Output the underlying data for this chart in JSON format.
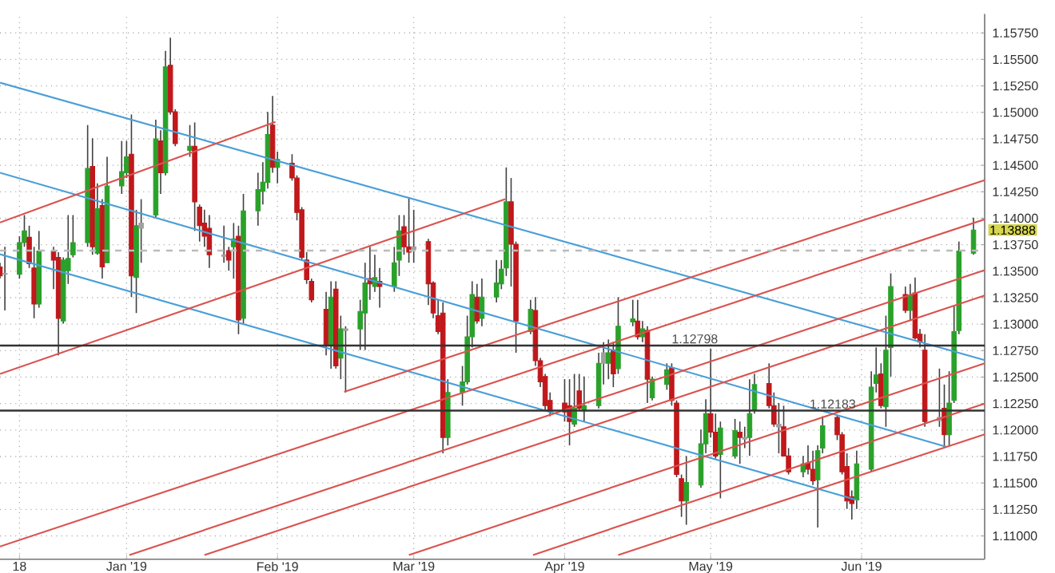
{
  "chart_data": {
    "type": "candlestick",
    "x": [
      "2018-12-06",
      "2018-12-07",
      "2018-12-10",
      "2018-12-11",
      "2018-12-12",
      "2018-12-13",
      "2018-12-14",
      "2018-12-17",
      "2018-12-18",
      "2018-12-19",
      "2018-12-20",
      "2018-12-21",
      "2018-12-24",
      "2018-12-25",
      "2018-12-26",
      "2018-12-27",
      "2018-12-28",
      "2018-12-31",
      "2019-01-01",
      "2019-01-02",
      "2019-01-03",
      "2019-01-04",
      "2019-01-07",
      "2019-01-08",
      "2019-01-09",
      "2019-01-10",
      "2019-01-11",
      "2019-01-14",
      "2019-01-15",
      "2019-01-16",
      "2019-01-17",
      "2019-01-18",
      "2019-01-21",
      "2019-01-22",
      "2019-01-23",
      "2019-01-24",
      "2019-01-25",
      "2019-01-28",
      "2019-01-29",
      "2019-01-30",
      "2019-01-31",
      "2019-02-01",
      "2019-02-04",
      "2019-02-05",
      "2019-02-06",
      "2019-02-07",
      "2019-02-08",
      "2019-02-11",
      "2019-02-12",
      "2019-02-13",
      "2019-02-14",
      "2019-02-15",
      "2019-02-18",
      "2019-02-19",
      "2019-02-20",
      "2019-02-21",
      "2019-02-22",
      "2019-02-25",
      "2019-02-26",
      "2019-02-27",
      "2019-02-28",
      "2019-03-01",
      "2019-03-04",
      "2019-03-05",
      "2019-03-06",
      "2019-03-07",
      "2019-03-08",
      "2019-03-11",
      "2019-03-12",
      "2019-03-13",
      "2019-03-14",
      "2019-03-15",
      "2019-03-18",
      "2019-03-19",
      "2019-03-20",
      "2019-03-21",
      "2019-03-22",
      "2019-03-25",
      "2019-03-26",
      "2019-03-27",
      "2019-03-28",
      "2019-03-29",
      "2019-04-01",
      "2019-04-02",
      "2019-04-03",
      "2019-04-04",
      "2019-04-05",
      "2019-04-08",
      "2019-04-09",
      "2019-04-10",
      "2019-04-11",
      "2019-04-12",
      "2019-04-15",
      "2019-04-16",
      "2019-04-17",
      "2019-04-18",
      "2019-04-19",
      "2019-04-22",
      "2019-04-23",
      "2019-04-24",
      "2019-04-25",
      "2019-04-26",
      "2019-04-29",
      "2019-04-30",
      "2019-05-01",
      "2019-05-02",
      "2019-05-03",
      "2019-05-06",
      "2019-05-07",
      "2019-05-08",
      "2019-05-09",
      "2019-05-10",
      "2019-05-13",
      "2019-05-14",
      "2019-05-15",
      "2019-05-16",
      "2019-05-17",
      "2019-05-20",
      "2019-05-21",
      "2019-05-22",
      "2019-05-23",
      "2019-05-24",
      "2019-05-27",
      "2019-05-28",
      "2019-05-29",
      "2019-05-30",
      "2019-05-31",
      "2019-06-03",
      "2019-06-04",
      "2019-06-05",
      "2019-06-06",
      "2019-06-07",
      "2019-06-10",
      "2019-06-11",
      "2019-06-12",
      "2019-06-13",
      "2019-06-14",
      "2019-06-17",
      "2019-06-18",
      "2019-06-19",
      "2019-06-20",
      "2019-06-21",
      "2019-06-24"
    ],
    "ohlc": [
      [
        1.1354,
        1.1358,
        1.1343,
        1.13455
      ],
      [
        1.1347,
        1.1373,
        1.1313,
        1.1348
      ],
      [
        1.1347,
        1.1383,
        1.1343,
        1.1377
      ],
      [
        1.1377,
        1.1403,
        1.1373,
        1.1388
      ],
      [
        1.1382,
        1.1393,
        1.1353,
        1.1357
      ],
      [
        1.1353,
        1.1373,
        1.13055,
        1.1319
      ],
      [
        1.1319,
        1.1388,
        1.13155,
        1.1369
      ],
      [
        1.1369,
        1.1373,
        1.1333,
        1.13605
      ],
      [
        1.1363,
        1.1368,
        1.12705,
        1.13055
      ],
      [
        1.1303,
        1.1363,
        1.13005,
        1.13605
      ],
      [
        1.13505,
        1.1403,
        1.1338,
        1.1362
      ],
      [
        1.13655,
        1.1403,
        1.1363,
        1.1377
      ],
      [
        1.1377,
        1.1488,
        1.1373,
        1.1447
      ],
      [
        1.1449,
        1.14755,
        1.13655,
        1.1373
      ],
      [
        1.1367,
        1.1433,
        1.13655,
        1.1409
      ],
      [
        1.1412,
        1.1418,
        1.1343,
        1.1354
      ],
      [
        1.1358,
        1.1458,
        1.1358,
        1.14305
      ],
      [
        1.14305,
        1.1473,
        1.1423,
        1.1444
      ],
      [
        1.1443,
        1.1473,
        1.1438,
        1.1458
      ],
      [
        1.14605,
        1.1498,
        1.13255,
        1.13455
      ],
      [
        1.1344,
        1.1408,
        1.13105,
        1.1393
      ],
      [
        1.13905,
        1.1418,
        1.1358,
        1.13955
      ],
      [
        1.1403,
        1.1493,
        1.14005,
        1.1475
      ],
      [
        1.1473,
        1.1483,
        1.1423,
        1.1443
      ],
      [
        1.1443,
        1.1558,
        1.14405,
        1.1543
      ],
      [
        1.15445,
        1.15705,
        1.1498,
        1.15005
      ],
      [
        1.15005,
        1.1503,
        1.1468,
        1.14705
      ],
      [
        1.1464,
        1.1488,
        1.1458,
        1.1468
      ],
      [
        1.1468,
        1.14905,
        1.1388,
        1.14155
      ],
      [
        1.14105,
        1.1413,
        1.1378,
        1.1393
      ],
      [
        1.13955,
        1.1408,
        1.1373,
        1.1383
      ],
      [
        1.13905,
        1.1403,
        1.1353,
        1.13655
      ],
      [
        1.1364,
        1.1393,
        1.1358,
        1.13655
      ],
      [
        1.13695,
        1.1373,
        1.13505,
        1.13605
      ],
      [
        1.1373,
        1.13955,
        1.1343,
        1.13805
      ],
      [
        1.1383,
        1.1393,
        1.12905,
        1.1304
      ],
      [
        1.13055,
        1.1423,
        1.13005,
        1.1407
      ],
      [
        1.1407,
        1.1443,
        1.1393,
        1.1427
      ],
      [
        1.14255,
        1.1453,
        1.1413,
        1.1434
      ],
      [
        1.1434,
        1.15005,
        1.1428,
        1.1479
      ],
      [
        1.1488,
        1.15155,
        1.1443,
        1.1448
      ],
      [
        1.1448,
        1.1463,
        1.1433,
        1.14555
      ],
      [
        1.1452,
        1.14605,
        1.14355,
        1.1438
      ],
      [
        1.1438,
        1.14405,
        1.1398,
        1.14055
      ],
      [
        1.1408,
        1.14105,
        1.13605,
        1.1363
      ],
      [
        1.13605,
        1.1368,
        1.1338,
        1.1342
      ],
      [
        1.13405,
        1.1343,
        1.13205,
        1.1323
      ],
      [
        1.1314,
        1.13305,
        1.12705,
        1.12805
      ],
      [
        1.12805,
        1.13405,
        1.1258,
        1.13255
      ],
      [
        1.1333,
        1.13405,
        1.1258,
        1.12605
      ],
      [
        1.1268,
        1.1308,
        1.1248,
        1.12955
      ],
      [
        1.1294,
        1.1298,
        1.12355,
        1.12955
      ],
      [
        1.12955,
        1.1323,
        1.12755,
        1.1312
      ],
      [
        1.13105,
        1.1358,
        1.12755,
        1.1339
      ],
      [
        1.1343,
        1.1373,
        1.1323,
        1.1338
      ],
      [
        1.13355,
        1.13655,
        1.13305,
        1.1344
      ],
      [
        1.13405,
        1.1353,
        1.13155,
        1.13355
      ],
      [
        1.13355,
        1.1373,
        1.13305,
        1.1358
      ],
      [
        1.13605,
        1.1403,
        1.13455,
        1.1388
      ],
      [
        1.1392,
        1.1403,
        1.13655,
        1.1373
      ],
      [
        1.1373,
        1.1419,
        1.1358,
        1.1368
      ],
      [
        1.13705,
        1.1408,
        1.1358,
        1.1373
      ],
      [
        1.1378,
        1.13805,
        1.1318,
        1.1338
      ],
      [
        1.1339,
        1.13405,
        1.13055,
        1.13105
      ],
      [
        1.1308,
        1.1323,
        1.12905,
        1.1293
      ],
      [
        1.13105,
        1.13205,
        1.1178,
        1.1193
      ],
      [
        1.1193,
        1.1248,
        1.11855,
        1.12355
      ],
      [
        1.12355,
        1.12605,
        1.1223,
        1.12455
      ],
      [
        1.12455,
        1.1308,
        1.1243,
        1.1288
      ],
      [
        1.1288,
        1.13405,
        1.1278,
        1.1328
      ],
      [
        1.13255,
        1.1338,
        1.13005,
        1.1303
      ],
      [
        1.13055,
        1.1343,
        1.1298,
        1.13255
      ],
      [
        1.13255,
        1.13605,
        1.13205,
        1.1339
      ],
      [
        1.1338,
        1.13605,
        1.1333,
        1.1352
      ],
      [
        1.1353,
        1.1448,
        1.13455,
        1.14155
      ],
      [
        1.14155,
        1.1438,
        1.13355,
        1.13755
      ],
      [
        1.13755,
        1.1378,
        1.1273,
        1.1303
      ],
      [
        1.1293,
        1.1323,
        1.12905,
        1.1314
      ],
      [
        1.1313,
        1.13255,
        1.12605,
        1.12655
      ],
      [
        1.12655,
        1.1268,
        1.12405,
        1.12455
      ],
      [
        1.12505,
        1.1253,
        1.1218,
        1.1223
      ],
      [
        1.1228,
        1.12355,
        1.1213,
        1.1218
      ],
      [
        1.12255,
        1.1248,
        1.1208,
        1.1217
      ],
      [
        1.1223,
        1.1248,
        1.11855,
        1.1208
      ],
      [
        1.12055,
        1.1253,
        1.1203,
        1.12205
      ],
      [
        1.1237,
        1.1253,
        1.1218,
        1.12205
      ],
      [
        1.1218,
        1.12505,
        1.1208,
        1.1223
      ],
      [
        1.1223,
        1.1273,
        1.12205,
        1.1263
      ],
      [
        1.1263,
        1.1283,
        1.1243,
        1.1273
      ],
      [
        1.1263,
        1.12855,
        1.1248,
        1.1273
      ],
      [
        1.12755,
        1.1283,
        1.12405,
        1.1253
      ],
      [
        1.1258,
        1.13255,
        1.1253,
        1.1298
      ],
      [
        1.1302,
        1.1323,
        1.1298,
        1.1305
      ],
      [
        1.1303,
        1.1323,
        1.12855,
        1.1288
      ],
      [
        1.1288,
        1.1303,
        1.1283,
        1.12955
      ],
      [
        1.1294,
        1.1298,
        1.12255,
        1.1248
      ],
      [
        1.12305,
        1.12505,
        1.1228,
        1.1248
      ],
      [
        1.1243,
        1.1263,
        1.1238,
        1.1257
      ],
      [
        1.1259,
        1.1263,
        1.1223,
        1.1228
      ],
      [
        1.12255,
        1.1228,
        1.11555,
        1.1158
      ],
      [
        1.1154,
        1.1158,
        1.1118,
        1.1133
      ],
      [
        1.1133,
        1.11755,
        1.11105,
        1.11505
      ],
      [
        1.1148,
        1.12005,
        1.11455,
        1.1187
      ],
      [
        1.1187,
        1.1229,
        1.1178,
        1.12155
      ],
      [
        1.12155,
        1.1277,
        1.1193,
        1.1198
      ],
      [
        1.1198,
        1.12155,
        1.1173,
        1.11755
      ],
      [
        1.1177,
        1.1208,
        1.11355,
        1.1202
      ],
      [
        1.11755,
        1.12105,
        1.1173,
        1.11995
      ],
      [
        1.1198,
        1.1208,
        1.1168,
        1.1193
      ],
      [
        1.11915,
        1.1203,
        1.1183,
        1.1193
      ],
      [
        1.1193,
        1.1248,
        1.11755,
        1.12155
      ],
      [
        1.1219,
        1.1253,
        1.12155,
        1.1243
      ],
      [
        1.1244,
        1.1263,
        1.12205,
        1.1223
      ],
      [
        1.1223,
        1.12355,
        1.1203,
        1.12055
      ],
      [
        1.1203,
        1.12255,
        1.1178,
        1.12055
      ],
      [
        1.1203,
        1.1223,
        1.11755,
        1.11755
      ],
      [
        1.11755,
        1.1183,
        1.1158,
        1.11605
      ],
      [
        1.11605,
        1.11755,
        1.11555,
        1.1168
      ],
      [
        1.1169,
        1.11855,
        1.1158,
        1.1163
      ],
      [
        1.1163,
        1.11805,
        1.1148,
        1.1152
      ],
      [
        1.1153,
        1.11855,
        1.1108,
        1.11805
      ],
      [
        1.1183,
        1.1213,
        1.1178,
        1.1204
      ],
      [
        1.1212,
        1.1214,
        1.11905,
        1.11955
      ],
      [
        1.11955,
        1.1198,
        1.1158,
        1.11605
      ],
      [
        1.11655,
        1.1178,
        1.11255,
        1.1133
      ],
      [
        1.1137,
        1.1143,
        1.11155,
        1.11305
      ],
      [
        1.1134,
        1.11805,
        1.11255,
        1.1168
      ],
      [
        1.1163,
        1.12555,
        1.11605,
        1.12405
      ],
      [
        1.1244,
        1.1278,
        1.12355,
        1.1252
      ],
      [
        1.1253,
        1.1263,
        1.12205,
        1.1223
      ],
      [
        1.1222,
        1.1308,
        1.1203,
        1.12755
      ],
      [
        1.1278,
        1.1348,
        1.12505,
        1.13355
      ],
      [
        1.1328,
        1.13355,
        1.13105,
        1.1313
      ],
      [
        1.1313,
        1.1338,
        1.1303,
        1.1327
      ],
      [
        1.13295,
        1.1344,
        1.12855,
        1.1287
      ],
      [
        1.12905,
        1.12955,
        1.1278,
        1.1283
      ],
      [
        1.12755,
        1.12905,
        1.1203,
        1.1208
      ],
      [
        1.1209,
        1.1258,
        1.1203,
        1.1212
      ],
      [
        1.12205,
        1.1243,
        1.1183,
        1.11955
      ],
      [
        1.11955,
        1.12555,
        1.11855,
        1.12255
      ],
      [
        1.1228,
        1.1318,
        1.12255,
        1.1293
      ],
      [
        1.1294,
        1.1378,
        1.12905,
        1.1369
      ],
      [
        1.1367,
        1.14005,
        1.13655,
        1.13888
      ]
    ],
    "colors": [
      "#c0181b",
      "#a0a0a0",
      "#2aa12a",
      "#2aa12a",
      "#c0181b",
      "#c0181b",
      "#2aa12a",
      "#c0181b",
      "#c0181b",
      "#2aa12a",
      "#2aa12a",
      "#2aa12a",
      "#2aa12a",
      "#c0181b",
      "#2aa12a",
      "#c0181b",
      "#2aa12a",
      "#2aa12a",
      "#2aa12a",
      "#c0181b",
      "#2aa12a",
      "#a0a0a0",
      "#2aa12a",
      "#c0181b",
      "#2aa12a",
      "#c0181b",
      "#c0181b",
      "#2aa12a",
      "#c0181b",
      "#c0181b",
      "#c0181b",
      "#c0181b",
      "#a0a0a0",
      "#c0181b",
      "#2aa12a",
      "#c0181b",
      "#2aa12a",
      "#2aa12a",
      "#2aa12a",
      "#2aa12a",
      "#c0181b",
      "#2aa12a",
      "#c0181b",
      "#c0181b",
      "#c0181b",
      "#c0181b",
      "#c0181b",
      "#c0181b",
      "#2aa12a",
      "#c0181b",
      "#2aa12a",
      "#a0a0a0",
      "#2aa12a",
      "#2aa12a",
      "#c0181b",
      "#2aa12a",
      "#c0181b",
      "#2aa12a",
      "#2aa12a",
      "#c0181b",
      "#c0181b",
      "#a0a0a0",
      "#c0181b",
      "#c0181b",
      "#c0181b",
      "#c0181b",
      "#2aa12a",
      "#2aa12a",
      "#2aa12a",
      "#2aa12a",
      "#c0181b",
      "#2aa12a",
      "#2aa12a",
      "#2aa12a",
      "#2aa12a",
      "#c0181b",
      "#c0181b",
      "#2aa12a",
      "#c0181b",
      "#c0181b",
      "#c0181b",
      "#c0181b",
      "#c0181b",
      "#c0181b",
      "#2aa12a",
      "#c0181b",
      "#2aa12a",
      "#2aa12a",
      "#a0a0a0",
      "#2aa12a",
      "#c0181b",
      "#2aa12a",
      "#2aa12a",
      "#c0181b",
      "#2aa12a",
      "#c0181b",
      "#2aa12a",
      "#2aa12a",
      "#c0181b",
      "#c0181b",
      "#c0181b",
      "#2aa12a",
      "#2aa12a",
      "#2aa12a",
      "#c0181b",
      "#c0181b",
      "#2aa12a",
      "#2aa12a",
      "#c0181b",
      "#a0a0a0",
      "#2aa12a",
      "#2aa12a",
      "#c0181b",
      "#c0181b",
      "#a0a0a0",
      "#c0181b",
      "#c0181b",
      "#2aa12a",
      "#c0181b",
      "#c0181b",
      "#2aa12a",
      "#2aa12a",
      "#c0181b",
      "#c0181b",
      "#c0181b",
      "#c0181b",
      "#2aa12a",
      "#2aa12a",
      "#2aa12a",
      "#c0181b",
      "#2aa12a",
      "#2aa12a",
      "#c0181b",
      "#2aa12a",
      "#c0181b",
      "#c0181b",
      "#c0181b",
      "#a0a0a0",
      "#c0181b",
      "#2aa12a",
      "#2aa12a",
      "#2aa12a",
      "#2aa12a"
    ],
    "series": [
      {
        "type": "line",
        "color": "#4a9fd8",
        "x": [
          "2018-12-06",
          "2019-06-26T07:00"
        ],
        "values": [
          1.1528,
          1.1266
        ]
      },
      {
        "type": "line",
        "color": "#4a9fd8",
        "x": [
          "2018-12-06",
          "2019-06-18T12:00"
        ],
        "values": [
          1.1443,
          1.1184
        ]
      },
      {
        "type": "line",
        "color": "#4a9fd8",
        "x": [
          "2018-12-06",
          "2019-05-31"
        ],
        "values": [
          1.1366,
          1.1134
        ]
      },
      {
        "type": "line",
        "color": "#d9534f",
        "x": [
          "2018-12-06",
          "2019-01-31T14:00"
        ],
        "values": [
          1.1396,
          1.1491
        ]
      },
      {
        "type": "line",
        "color": "#d9534f",
        "x": [
          "2018-12-06",
          "2019-03-19T19:00"
        ],
        "values": [
          1.1253,
          1.1418
        ]
      },
      {
        "type": "line",
        "color": "#d9534f",
        "x": [
          "2019-02-14T17:00",
          "2019-06-26T07:00"
        ],
        "values": [
          1.1236,
          1.1436
        ]
      },
      {
        "type": "line",
        "color": "#d9534f",
        "x": [
          "2018-12-06",
          "2019-06-26T07:00"
        ],
        "values": [
          1.109,
          1.1399
        ]
      },
      {
        "type": "line",
        "color": "#d9534f",
        "x": [
          "2019-01-01T14:00",
          "2019-06-26T07:00"
        ],
        "values": [
          1.1082,
          1.1351
        ]
      },
      {
        "type": "line",
        "color": "#d9534f",
        "x": [
          "2019-01-17",
          "2019-06-26T07:00"
        ],
        "values": [
          1.1082,
          1.1327
        ]
      },
      {
        "type": "line",
        "color": "#d9534f",
        "x": [
          "2019-02-28",
          "2019-06-26T07:00"
        ],
        "values": [
          1.1082,
          1.1263
        ]
      },
      {
        "type": "line",
        "color": "#d9534f",
        "x": [
          "2019-03-25T12:00",
          "2019-06-26T07:00"
        ],
        "values": [
          1.1082,
          1.1225
        ]
      },
      {
        "type": "line",
        "color": "#d9534f",
        "x": [
          "2019-04-12",
          "2019-06-26T07:00"
        ],
        "values": [
          1.1082,
          1.1196
        ]
      }
    ],
    "ref_lines": [
      {
        "axis": "y",
        "value": 1.12798,
        "label": "1.12798",
        "color": "#333333",
        "line_style": "solid"
      },
      {
        "axis": "y",
        "value": 1.12183,
        "label": "1.12183",
        "color": "#333333",
        "line_style": "solid"
      },
      {
        "axis": "y",
        "value": 1.13695,
        "color": "#bbbbbb",
        "line_style": "dashed"
      }
    ],
    "annotations": [
      "1.13888"
    ],
    "xlim": [
      "2018-12-06",
      "2019-06-26T07:00"
    ],
    "ylim": [
      1.1078,
      1.1593
    ],
    "xticks": [
      {
        "value": "2018-12-10",
        "label": "18"
      },
      {
        "value": "2019-01-01",
        "label": "Jan '19"
      },
      {
        "value": "2019-02-01",
        "label": "Feb '19"
      },
      {
        "value": "2019-03-01",
        "label": "Mar '19"
      },
      {
        "value": "2019-04-01",
        "label": "Apr '19"
      },
      {
        "value": "2019-05-01",
        "label": "May '19"
      },
      {
        "value": "2019-06-01",
        "label": "Jun '19"
      }
    ],
    "yticks": [
      {
        "value": 1.11,
        "label": "1.11000"
      },
      {
        "value": 1.1125,
        "label": "1.11250"
      },
      {
        "value": 1.115,
        "label": "1.11500"
      },
      {
        "value": 1.1175,
        "label": "1.11750"
      },
      {
        "value": 1.12,
        "label": "1.12000"
      },
      {
        "value": 1.1225,
        "label": "1.12250"
      },
      {
        "value": 1.125,
        "label": "1.12500"
      },
      {
        "value": 1.1275,
        "label": "1.12750"
      },
      {
        "value": 1.13,
        "label": "1.13000"
      },
      {
        "value": 1.1325,
        "label": "1.13250"
      },
      {
        "value": 1.135,
        "label": "1.13500"
      },
      {
        "value": 1.1375,
        "label": "1.13750"
      },
      {
        "value": 1.14,
        "label": "1.14000"
      },
      {
        "value": 1.1425,
        "label": "1.14250"
      },
      {
        "value": 1.145,
        "label": "1.14500"
      },
      {
        "value": 1.1475,
        "label": "1.14750"
      },
      {
        "value": 1.15,
        "label": "1.15000"
      },
      {
        "value": 1.1525,
        "label": "1.15250"
      },
      {
        "value": 1.155,
        "label": "1.15500"
      },
      {
        "value": 1.1575,
        "label": "1.15750"
      }
    ],
    "grid": true
  }
}
